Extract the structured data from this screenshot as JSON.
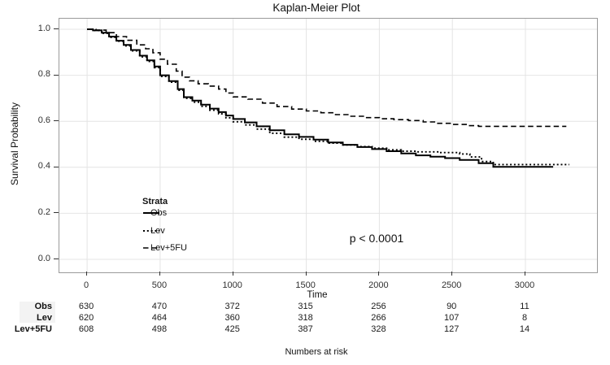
{
  "chart": {
    "title": "Kaplan-Meier Plot",
    "xlabel": "Time",
    "ylabel": "Survival Probability",
    "p_value": "p < 0.0001"
  },
  "legend": {
    "title": "Strata"
  },
  "chart_data": {
    "type": "line",
    "subtype": "kaplan-meier-step-curves",
    "title": "Kaplan-Meier Plot",
    "xlabel": "Time",
    "ylabel": "Survival Probability",
    "annotation": "p < 0.0001",
    "grid": true,
    "legend_title": "Strata",
    "legend_position": "inside-bottom-left",
    "xticks": [
      0,
      500,
      1000,
      1500,
      2000,
      2500,
      3000
    ],
    "yticks": [
      0.0,
      0.2,
      0.4,
      0.6,
      0.8,
      1.0
    ],
    "xlim": [
      -190,
      3490
    ],
    "ylim": [
      -0.0566,
      1.0459
    ],
    "line_color": "#000000",
    "grid_color": "#e4e4e4",
    "series": [
      {
        "name": "Obs",
        "linetype": "solid",
        "points": [
          [
            0,
            1.0
          ],
          [
            40,
            0.995
          ],
          [
            100,
            0.985
          ],
          [
            150,
            0.968
          ],
          [
            200,
            0.95
          ],
          [
            250,
            0.932
          ],
          [
            300,
            0.91
          ],
          [
            360,
            0.885
          ],
          [
            410,
            0.865
          ],
          [
            460,
            0.838
          ],
          [
            500,
            0.8
          ],
          [
            560,
            0.775
          ],
          [
            620,
            0.74
          ],
          [
            662,
            0.705
          ],
          [
            720,
            0.69
          ],
          [
            780,
            0.672
          ],
          [
            840,
            0.655
          ],
          [
            900,
            0.64
          ],
          [
            950,
            0.625
          ],
          [
            1000,
            0.61
          ],
          [
            1080,
            0.595
          ],
          [
            1160,
            0.578
          ],
          [
            1250,
            0.561
          ],
          [
            1350,
            0.543
          ],
          [
            1450,
            0.532
          ],
          [
            1550,
            0.52
          ],
          [
            1650,
            0.508
          ],
          [
            1750,
            0.498
          ],
          [
            1850,
            0.488
          ],
          [
            1950,
            0.479
          ],
          [
            2050,
            0.47
          ],
          [
            2150,
            0.46
          ],
          [
            2250,
            0.452
          ],
          [
            2350,
            0.446
          ],
          [
            2450,
            0.44
          ],
          [
            2550,
            0.432
          ],
          [
            2680,
            0.418
          ],
          [
            2780,
            0.402
          ],
          [
            3190,
            0.402
          ]
        ]
      },
      {
        "name": "Lev",
        "linetype": "dotted",
        "points": [
          [
            0,
            1.0
          ],
          [
            40,
            0.995
          ],
          [
            100,
            0.982
          ],
          [
            150,
            0.965
          ],
          [
            200,
            0.948
          ],
          [
            250,
            0.928
          ],
          [
            300,
            0.906
          ],
          [
            360,
            0.88
          ],
          [
            410,
            0.86
          ],
          [
            460,
            0.833
          ],
          [
            500,
            0.795
          ],
          [
            560,
            0.77
          ],
          [
            620,
            0.735
          ],
          [
            662,
            0.7
          ],
          [
            720,
            0.683
          ],
          [
            780,
            0.665
          ],
          [
            840,
            0.648
          ],
          [
            900,
            0.632
          ],
          [
            950,
            0.615
          ],
          [
            1000,
            0.598
          ],
          [
            1080,
            0.584
          ],
          [
            1160,
            0.566
          ],
          [
            1250,
            0.548
          ],
          [
            1350,
            0.531
          ],
          [
            1450,
            0.522
          ],
          [
            1550,
            0.513
          ],
          [
            1650,
            0.505
          ],
          [
            1750,
            0.497
          ],
          [
            1850,
            0.49
          ],
          [
            1950,
            0.483
          ],
          [
            2050,
            0.476
          ],
          [
            2150,
            0.47
          ],
          [
            2250,
            0.467
          ],
          [
            2400,
            0.464
          ],
          [
            2550,
            0.458
          ],
          [
            2620,
            0.445
          ],
          [
            2700,
            0.425
          ],
          [
            2780,
            0.412
          ],
          [
            3300,
            0.412
          ]
        ]
      },
      {
        "name": "Lev+5FU",
        "linetype": "dashed",
        "points": [
          [
            0,
            1.0
          ],
          [
            60,
            0.996
          ],
          [
            130,
            0.985
          ],
          [
            200,
            0.968
          ],
          [
            270,
            0.952
          ],
          [
            340,
            0.932
          ],
          [
            400,
            0.915
          ],
          [
            450,
            0.898
          ],
          [
            500,
            0.87
          ],
          [
            550,
            0.848
          ],
          [
            610,
            0.818
          ],
          [
            650,
            0.792
          ],
          [
            700,
            0.776
          ],
          [
            760,
            0.763
          ],
          [
            830,
            0.753
          ],
          [
            900,
            0.74
          ],
          [
            950,
            0.723
          ],
          [
            1000,
            0.706
          ],
          [
            1100,
            0.696
          ],
          [
            1200,
            0.679
          ],
          [
            1300,
            0.664
          ],
          [
            1400,
            0.653
          ],
          [
            1500,
            0.645
          ],
          [
            1600,
            0.637
          ],
          [
            1700,
            0.629
          ],
          [
            1800,
            0.622
          ],
          [
            1900,
            0.616
          ],
          [
            2000,
            0.611
          ],
          [
            2100,
            0.607
          ],
          [
            2200,
            0.603
          ],
          [
            2300,
            0.597
          ],
          [
            2400,
            0.591
          ],
          [
            2500,
            0.586
          ],
          [
            2600,
            0.581
          ],
          [
            2680,
            0.578
          ],
          [
            3280,
            0.578
          ]
        ]
      }
    ]
  },
  "risk_table": {
    "caption": "Numbers at risk",
    "time_points": [
      0,
      500,
      1000,
      1500,
      2000,
      2500,
      3000
    ],
    "rows": [
      {
        "label": "Obs",
        "values": [
          "630",
          "470",
          "372",
          "315",
          "256",
          "90",
          "11"
        ]
      },
      {
        "label": "Lev",
        "values": [
          "620",
          "464",
          "360",
          "318",
          "266",
          "107",
          "8"
        ]
      },
      {
        "label": "Lev+5FU",
        "values": [
          "608",
          "498",
          "425",
          "387",
          "328",
          "127",
          "14"
        ]
      }
    ]
  }
}
